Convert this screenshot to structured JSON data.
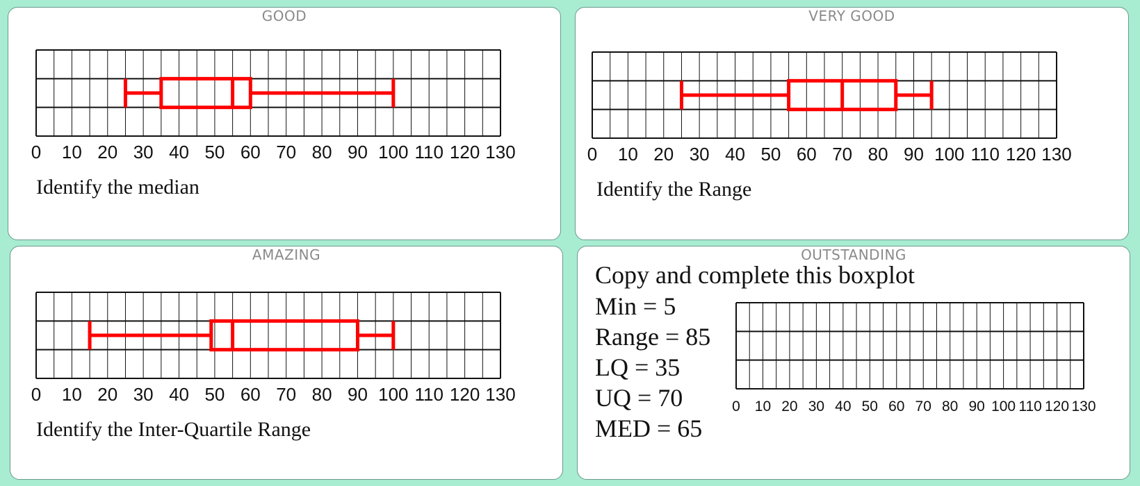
{
  "cards": [
    {
      "title": "GOOD",
      "question": "Identify the median"
    },
    {
      "title": "VERY GOOD",
      "question": "Identify the Range"
    },
    {
      "title": "AMAZING",
      "question": "Identify the Inter-Quartile Range"
    },
    {
      "title": "OUTSTANDING",
      "heading": "Copy and complete this boxplot",
      "info": [
        "Min = 5",
        "Range = 85",
        "LQ = 35",
        "UQ = 70",
        "MED = 65"
      ]
    }
  ],
  "colors": {
    "box": "#ff0000",
    "grid": "#111111",
    "card_bg": "#ffffff",
    "page_bg": "#a8ecd2"
  },
  "chart_data": [
    {
      "type": "boxplot",
      "xlim": [
        0,
        130
      ],
      "tick_labels": [
        "0",
        "10",
        "20",
        "30",
        "40",
        "50",
        "60",
        "70",
        "80",
        "90",
        "100",
        "110",
        "120",
        "130"
      ],
      "min": 25,
      "lq": 35,
      "median": 55,
      "uq": 60,
      "max": 100
    },
    {
      "type": "boxplot",
      "xlim": [
        0,
        130
      ],
      "tick_labels": [
        "0",
        "10",
        "20",
        "30",
        "40",
        "50",
        "60",
        "70",
        "80",
        "90",
        "100",
        "110",
        "120",
        "130"
      ],
      "min": 25,
      "lq": 55,
      "median": 70,
      "uq": 85,
      "max": 95
    },
    {
      "type": "boxplot",
      "xlim": [
        0,
        130
      ],
      "tick_labels": [
        "0",
        "10",
        "20",
        "30",
        "40",
        "50",
        "60",
        "70",
        "80",
        "90",
        "100",
        "110",
        "120",
        "130"
      ],
      "min": 15,
      "lq": 49,
      "median": 55,
      "uq": 90,
      "max": 100
    },
    {
      "type": "boxplot",
      "xlim": [
        0,
        130
      ],
      "tick_labels": [
        "0",
        "10",
        "20",
        "30",
        "40",
        "50",
        "60",
        "70",
        "80",
        "90",
        "100",
        "110",
        "120",
        "130"
      ],
      "blank": true
    }
  ]
}
